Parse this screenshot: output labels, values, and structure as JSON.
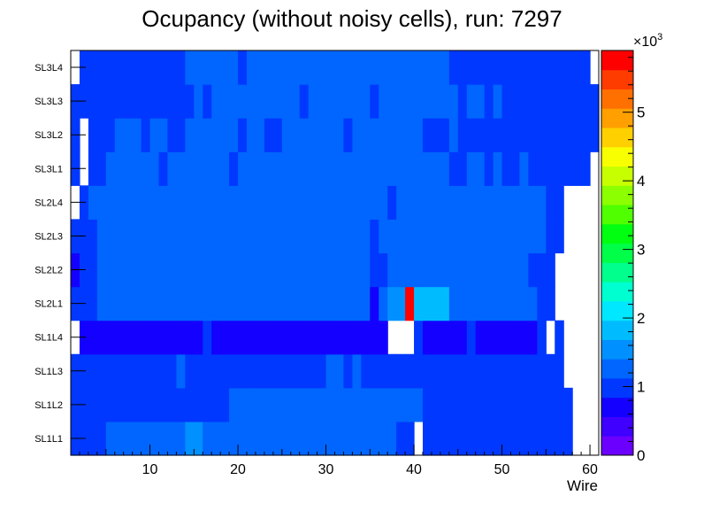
{
  "chart_data": {
    "type": "heatmap",
    "title": "Ocupancy (without noisy cells), run: 7297",
    "xlabel": "Wire",
    "ylabel": "",
    "xlim": [
      1,
      61
    ],
    "x_ticks": [
      10,
      20,
      30,
      40,
      50,
      60
    ],
    "y_categories": [
      "SL1L1",
      "SL1L2",
      "SL1L3",
      "SL1L4",
      "SL2L1",
      "SL2L2",
      "SL2L3",
      "SL2L4",
      "SL3L1",
      "SL3L2",
      "SL3L3",
      "SL3L4"
    ],
    "colorbar": {
      "exponent_label": "×10",
      "exponent_power": "3",
      "ticks": [
        0,
        1,
        2,
        3,
        4,
        5
      ],
      "tick_labels": [
        "0",
        "1",
        "2",
        "3",
        "4",
        "5"
      ],
      "zmin": 0,
      "zmax": 5.9,
      "palette": [
        "#6b00ff",
        "#3f00ff",
        "#1400ff",
        "#0038ff",
        "#0066ff",
        "#0090ff",
        "#00bcff",
        "#00e8ff",
        "#00ffd0",
        "#00ff8c",
        "#00ff48",
        "#00ff10",
        "#50ff00",
        "#8cff00",
        "#c8ff00",
        "#f8ff00",
        "#ffd000",
        "#ffa000",
        "#ff7000",
        "#ff3c00",
        "#ff0000"
      ]
    },
    "rows": [
      {
        "label": "SL1L1",
        "values": [
          0.9,
          0.9,
          0.9,
          0.9,
          1.2,
          1.2,
          1.2,
          1.2,
          1.2,
          1.2,
          1.2,
          1.2,
          1.2,
          1.6,
          1.6,
          1.2,
          1.2,
          1.2,
          1.2,
          1.2,
          1.2,
          1.2,
          1.2,
          1.2,
          1.2,
          1.2,
          1.2,
          1.2,
          1.2,
          1.2,
          1.2,
          1.2,
          1.2,
          1.2,
          1.2,
          1.2,
          1.2,
          1.1,
          1.1,
          null,
          1.1,
          1.1,
          1.1,
          1.1,
          1.1,
          1.1,
          0.9,
          0.9,
          0.9,
          0.9,
          1.1,
          1.1,
          1.1,
          1.1,
          0.9,
          0.9,
          0.9,
          null,
          null,
          null
        ]
      },
      {
        "label": "SL1L2",
        "values": [
          0.9,
          0.9,
          0.9,
          0.9,
          1.1,
          1.1,
          1.1,
          1.1,
          1.1,
          1.1,
          1.1,
          1.1,
          1.1,
          1.1,
          1.1,
          1.1,
          1.1,
          1.1,
          1.2,
          1.2,
          1.2,
          1.2,
          1.2,
          1.2,
          1.2,
          1.2,
          1.2,
          1.2,
          1.2,
          1.2,
          1.2,
          1.2,
          1.2,
          1.2,
          1.2,
          1.2,
          1.2,
          1.2,
          1.2,
          1.2,
          1.1,
          1.1,
          1.1,
          1.1,
          1.1,
          1.1,
          1.1,
          0.9,
          0.9,
          0.9,
          0.9,
          0.9,
          0.9,
          0.9,
          0.9,
          0.9,
          0.9,
          null,
          null,
          null
        ]
      },
      {
        "label": "SL1L3",
        "values": [
          0.9,
          0.9,
          0.9,
          1.1,
          1.1,
          1.1,
          1.1,
          1.1,
          1.1,
          1.1,
          1.1,
          1.1,
          1.2,
          1.1,
          1.1,
          1.1,
          1.1,
          1.1,
          1.1,
          1.1,
          1.1,
          1.1,
          1.1,
          1.1,
          1.1,
          1.1,
          1.1,
          1.1,
          1.1,
          1.2,
          1.2,
          1.1,
          1.2,
          1.1,
          1.1,
          1.1,
          1.1,
          1.1,
          1.1,
          1.1,
          1.1,
          1.1,
          1.1,
          1.1,
          1.1,
          1.1,
          0.9,
          0.9,
          0.9,
          0.9,
          0.9,
          0.9,
          0.9,
          0.9,
          0.9,
          0.9,
          null,
          null,
          null,
          null
        ]
      },
      {
        "label": "SL1L4",
        "values": [
          null,
          0.7,
          0.7,
          0.7,
          0.7,
          0.7,
          0.7,
          0.7,
          0.7,
          0.7,
          0.7,
          0.7,
          0.7,
          0.7,
          0.7,
          1.1,
          0.7,
          0.7,
          0.7,
          0.7,
          0.7,
          0.7,
          0.7,
          0.7,
          0.7,
          0.7,
          0.7,
          0.7,
          0.7,
          0.7,
          0.7,
          0.7,
          0.7,
          0.7,
          0.7,
          0.7,
          null,
          null,
          null,
          1.1,
          0.7,
          0.7,
          0.7,
          0.7,
          0.7,
          0.9,
          0.7,
          0.6,
          0.6,
          0.6,
          0.6,
          0.6,
          0.6,
          0.9,
          null,
          0.9,
          null,
          null,
          null,
          null
        ]
      },
      {
        "label": "SL2L1",
        "values": [
          0.9,
          0.9,
          0.9,
          1.2,
          1.2,
          1.2,
          1.2,
          1.2,
          1.2,
          1.2,
          1.2,
          1.2,
          1.2,
          1.2,
          1.2,
          1.2,
          1.2,
          1.2,
          1.2,
          1.2,
          1.2,
          1.2,
          1.2,
          1.2,
          1.2,
          1.2,
          1.2,
          1.2,
          1.2,
          1.2,
          1.2,
          1.2,
          1.2,
          1.2,
          0.8,
          1.4,
          1.6,
          1.6,
          5.8,
          1.7,
          1.7,
          1.9,
          1.9,
          1.3,
          1.2,
          1.2,
          1.2,
          1.2,
          1.2,
          1.2,
          1.2,
          1.2,
          1.2,
          1.1,
          0.9,
          null,
          null,
          null,
          null,
          null
        ]
      },
      {
        "label": "SL2L2",
        "values": [
          0.8,
          0.9,
          0.9,
          1.2,
          1.2,
          1.2,
          1.2,
          1.2,
          1.2,
          1.2,
          1.2,
          1.2,
          1.2,
          1.2,
          1.2,
          1.2,
          1.2,
          1.2,
          1.2,
          1.2,
          1.2,
          1.2,
          1.2,
          1.2,
          1.2,
          1.2,
          1.2,
          1.2,
          1.2,
          1.2,
          1.2,
          1.2,
          1.2,
          1.2,
          1.1,
          1.1,
          1.2,
          1.2,
          1.2,
          1.2,
          1.2,
          1.2,
          1.2,
          1.2,
          1.2,
          1.2,
          1.2,
          1.2,
          1.2,
          1.2,
          1.2,
          1.2,
          1.1,
          1.1,
          0.9,
          null,
          null,
          null,
          null,
          null
        ]
      },
      {
        "label": "SL2L3",
        "values": [
          1.1,
          0.9,
          0.9,
          1.2,
          1.2,
          1.2,
          1.2,
          1.2,
          1.2,
          1.2,
          1.2,
          1.2,
          1.2,
          1.2,
          1.2,
          1.2,
          1.2,
          1.2,
          1.2,
          1.2,
          1.2,
          1.2,
          1.2,
          1.2,
          1.2,
          1.2,
          1.2,
          1.2,
          1.2,
          1.2,
          1.2,
          1.2,
          1.2,
          1.2,
          1.1,
          1.2,
          1.2,
          1.2,
          1.2,
          1.2,
          1.2,
          1.2,
          1.2,
          1.2,
          1.2,
          1.2,
          1.2,
          1.2,
          1.2,
          1.2,
          1.2,
          1.2,
          1.2,
          1.2,
          1.1,
          0.9,
          null,
          null,
          null,
          null
        ]
      },
      {
        "label": "SL2L4",
        "values": [
          null,
          1.1,
          1.2,
          1.2,
          1.2,
          1.2,
          1.2,
          1.2,
          1.2,
          1.2,
          1.2,
          1.2,
          1.2,
          1.2,
          1.2,
          1.2,
          1.2,
          1.2,
          1.2,
          1.2,
          1.2,
          1.2,
          1.2,
          1.2,
          1.2,
          1.2,
          1.2,
          1.2,
          1.2,
          1.2,
          1.2,
          1.2,
          1.2,
          1.2,
          1.2,
          1.2,
          1.1,
          1.2,
          1.2,
          1.2,
          1.2,
          1.2,
          1.2,
          1.2,
          1.2,
          1.2,
          1.2,
          1.2,
          1.2,
          1.2,
          1.2,
          1.2,
          1.2,
          1.2,
          1.1,
          1.1,
          null,
          null,
          null,
          null
        ]
      },
      {
        "label": "SL3L1",
        "values": [
          0.9,
          null,
          1.1,
          1.1,
          1.2,
          1.2,
          1.2,
          1.2,
          1.2,
          1.2,
          1.1,
          1.2,
          1.2,
          1.2,
          1.2,
          1.2,
          1.2,
          1.2,
          1.1,
          1.2,
          1.2,
          1.2,
          1.2,
          1.2,
          1.2,
          1.2,
          1.2,
          1.2,
          1.2,
          1.2,
          1.2,
          1.2,
          1.2,
          1.2,
          1.2,
          1.2,
          1.2,
          1.2,
          1.2,
          1.2,
          1.2,
          1.2,
          1.2,
          1.1,
          0.9,
          1.2,
          1.2,
          0.9,
          1.2,
          0.9,
          0.9,
          1.2,
          1.1,
          1.1,
          1.1,
          1.1,
          1.1,
          1.1,
          1.1,
          null
        ]
      },
      {
        "label": "SL3L2",
        "values": [
          0.9,
          null,
          0.9,
          1.1,
          1.1,
          1.2,
          1.2,
          1.2,
          1.1,
          1.2,
          1.2,
          1.1,
          1.1,
          1.2,
          1.2,
          1.2,
          1.2,
          1.2,
          1.2,
          1.1,
          1.2,
          1.2,
          1.1,
          1.1,
          1.2,
          1.2,
          1.2,
          1.2,
          1.2,
          1.2,
          1.2,
          1.1,
          1.2,
          1.2,
          1.2,
          1.2,
          1.2,
          1.2,
          1.2,
          1.2,
          1.1,
          1.1,
          1.1,
          1.2,
          0.9,
          0.9,
          1.1,
          1.1,
          1.1,
          0.9,
          1.1,
          1.1,
          1.1,
          1.1,
          1.1,
          1.1,
          1.1,
          1.1,
          1.1,
          0.9
        ]
      },
      {
        "label": "SL3L3",
        "values": [
          0.9,
          0.9,
          1.1,
          1.1,
          1.1,
          1.1,
          1.1,
          1.1,
          1.1,
          1.1,
          1.1,
          1.1,
          1.1,
          1.1,
          1.2,
          1.1,
          1.2,
          1.2,
          1.2,
          1.2,
          1.2,
          1.2,
          1.2,
          1.2,
          1.2,
          1.2,
          1.1,
          1.2,
          1.2,
          1.2,
          1.2,
          1.2,
          1.2,
          1.2,
          1.1,
          1.2,
          1.2,
          1.2,
          1.2,
          1.2,
          1.2,
          1.2,
          1.2,
          1.2,
          0.9,
          1.2,
          1.2,
          1.1,
          1.2,
          0.9,
          1.1,
          1.1,
          1.1,
          1.1,
          1.1,
          1.1,
          1.1,
          1.1,
          1.1,
          0.9
        ]
      },
      {
        "label": "SL3L4",
        "values": [
          null,
          0.9,
          0.9,
          0.9,
          1.1,
          1.1,
          0.9,
          0.9,
          1.1,
          1.1,
          1.1,
          1.1,
          1.1,
          1.2,
          1.2,
          1.2,
          1.2,
          1.2,
          1.2,
          1.1,
          1.2,
          1.2,
          1.2,
          1.2,
          1.2,
          1.2,
          1.2,
          1.2,
          1.2,
          1.2,
          1.2,
          1.2,
          1.2,
          1.2,
          1.2,
          1.2,
          1.2,
          1.2,
          1.2,
          1.2,
          1.2,
          1.2,
          1.2,
          0.9,
          0.9,
          1.1,
          1.1,
          0.9,
          0.9,
          0.9,
          1.1,
          1.1,
          1.1,
          1.1,
          1.1,
          1.1,
          1.1,
          1.1,
          1.1,
          null
        ]
      }
    ]
  }
}
